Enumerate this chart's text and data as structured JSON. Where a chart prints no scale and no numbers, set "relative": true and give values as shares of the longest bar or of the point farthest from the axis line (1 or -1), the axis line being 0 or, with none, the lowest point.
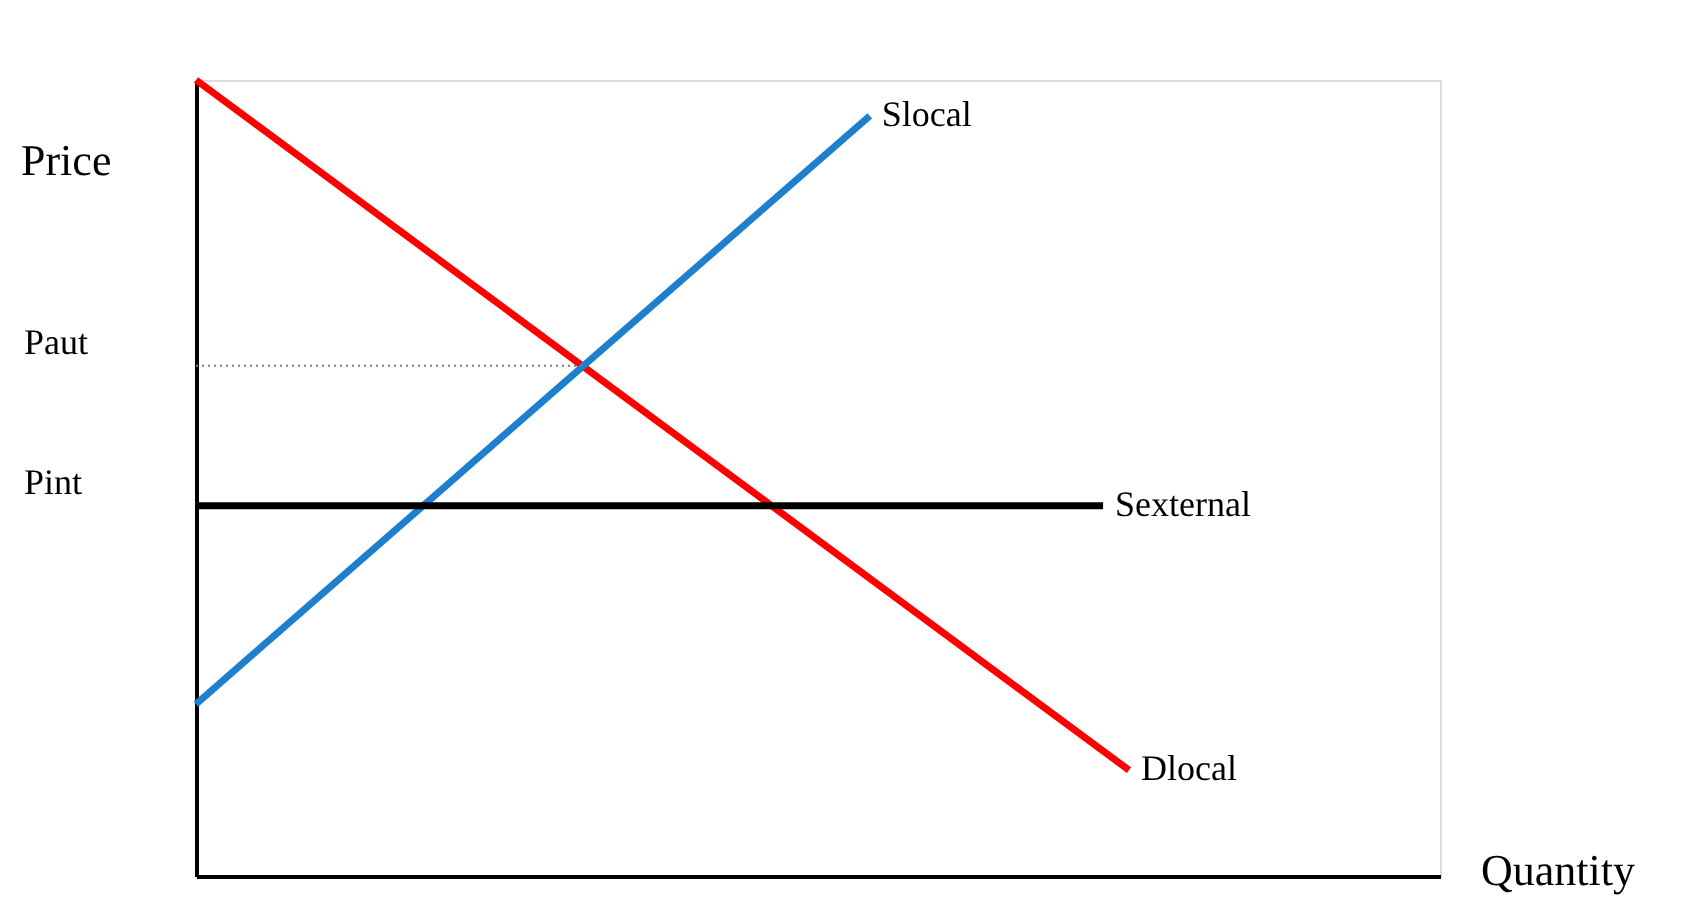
{
  "chart_data": {
    "type": "line",
    "relative": true,
    "xlabel": "Quantity",
    "ylabel": "Price",
    "categories": [
      null,
      null,
      null,
      null,
      null,
      null,
      null,
      null,
      null,
      null,
      null,
      null,
      null,
      null,
      null,
      null,
      null,
      null,
      null,
      null,
      null,
      null,
      null,
      null,
      null,
      null,
      null,
      null,
      null,
      null,
      null,
      null,
      null,
      null,
      null,
      null,
      null,
      null,
      null,
      null,
      null,
      null,
      null,
      null,
      null,
      null,
      null,
      null,
      null
    ],
    "series": [
      {
        "name": "Dlocal",
        "color": "#ff0000",
        "values": [
          1.0,
          null,
          null,
          null,
          null,
          null,
          null,
          null,
          null,
          null,
          null,
          null,
          null,
          null,
          null,
          null,
          null,
          null,
          null,
          null,
          null,
          null,
          null,
          null,
          null,
          null,
          null,
          null,
          null,
          null,
          null,
          null,
          null,
          null,
          null,
          null,
          0.133,
          null,
          null,
          null,
          null,
          null,
          null,
          null,
          null,
          null,
          null,
          null,
          null
        ]
      },
      {
        "name": "Slocal",
        "color": "#1e7fcf",
        "values": [
          0.216,
          null,
          null,
          null,
          null,
          null,
          null,
          null,
          null,
          null,
          null,
          null,
          null,
          null,
          null,
          null,
          null,
          null,
          null,
          null,
          null,
          null,
          null,
          null,
          null,
          null,
          0.955,
          null,
          null,
          null,
          null,
          null,
          null,
          null,
          null,
          null,
          null,
          null,
          null,
          null,
          null,
          null,
          null,
          null,
          null,
          null,
          null,
          null,
          null
        ]
      },
      {
        "name": "Sexternal",
        "color": "#000000",
        "values": [
          0.465,
          null,
          null,
          null,
          null,
          null,
          null,
          null,
          null,
          null,
          null,
          null,
          null,
          null,
          null,
          null,
          null,
          null,
          null,
          null,
          null,
          null,
          null,
          null,
          null,
          null,
          null,
          null,
          null,
          null,
          null,
          null,
          null,
          null,
          null,
          0.465,
          null,
          null,
          null,
          null,
          null,
          null,
          null,
          null,
          null,
          null,
          null,
          null,
          null
        ]
      },
      {
        "color": "#808080",
        "line_style": "dotted",
        "values": [
          0.641,
          null,
          null,
          null,
          null,
          null,
          null,
          null,
          null,
          null,
          null,
          null,
          null,
          null,
          null,
          0.641,
          null,
          null,
          null,
          null,
          null,
          null,
          null,
          null,
          null,
          null,
          null,
          null,
          null,
          null,
          null,
          null,
          null,
          null,
          null,
          null,
          null,
          null,
          null,
          null,
          null,
          null,
          null,
          null,
          null,
          null,
          null,
          null,
          null
        ]
      }
    ],
    "annotations": [
      "Paut",
      "Pint"
    ],
    "grid": false,
    "marker": "none",
    "line_style": "solid"
  }
}
